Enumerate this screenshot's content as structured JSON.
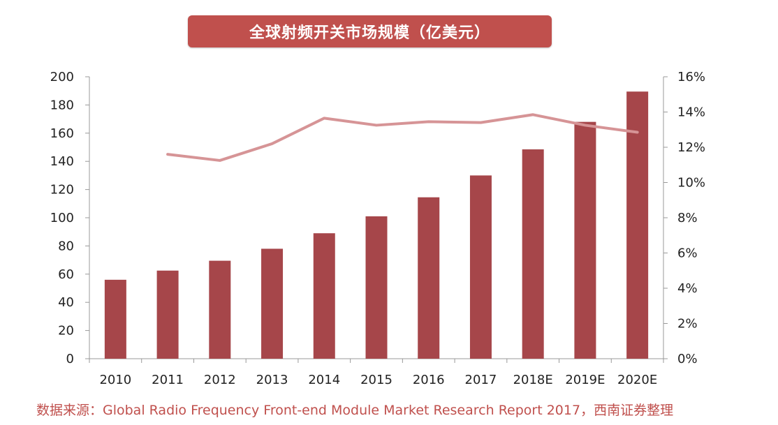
{
  "title": "全球射频开关市场规模（亿美元）",
  "source": "数据来源：Global Radio Frequency Front-end Module Market Research Report 2017，西南证券整理",
  "colors": {
    "title_bg": "#c0504d",
    "bar": "#a6464a",
    "line": "#d69496",
    "axis": "#999999",
    "source_text": "#c0504d"
  },
  "chart_data": {
    "type": "bar",
    "title": "全球射频开关市场规模（亿美元）",
    "categories": [
      "2010",
      "2011",
      "2012",
      "2013",
      "2014",
      "2015",
      "2016",
      "2017",
      "2018E",
      "2019E",
      "2020E"
    ],
    "series": [
      {
        "type": "bar",
        "axis": "left",
        "values": [
          56,
          62.5,
          69.5,
          78,
          89,
          101,
          114.5,
          130,
          148.5,
          168,
          189.5
        ]
      },
      {
        "type": "line",
        "axis": "right",
        "values": [
          null,
          0.116,
          0.1125,
          0.122,
          0.1365,
          0.1325,
          0.1345,
          0.134,
          0.1385,
          0.1325,
          0.1285
        ]
      }
    ],
    "y_left": {
      "min": 0,
      "max": 200,
      "ticks": [
        "0",
        "20",
        "40",
        "60",
        "80",
        "100",
        "120",
        "140",
        "160",
        "180",
        "200"
      ]
    },
    "y_right": {
      "min": 0,
      "max": 0.16,
      "ticks": [
        "0%",
        "2%",
        "4%",
        "6%",
        "8%",
        "10%",
        "12%",
        "14%",
        "16%"
      ]
    },
    "grid": false,
    "legend": "none"
  }
}
